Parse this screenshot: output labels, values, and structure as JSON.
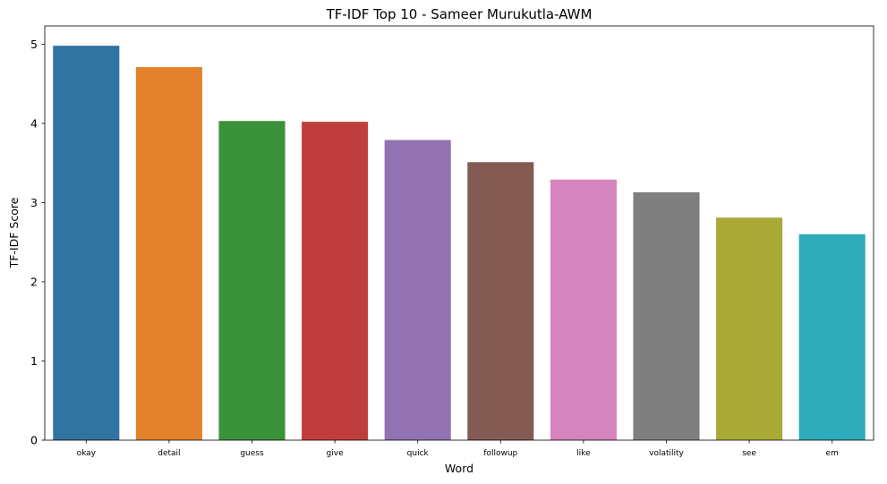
{
  "chart_data": {
    "type": "bar",
    "title": "TF-IDF Top 10 - Sameer Murukutla-AWM",
    "xlabel": "Word",
    "ylabel": "TF-IDF Score",
    "categories": [
      "okay",
      "detail",
      "guess",
      "give",
      "quick",
      "followup",
      "like",
      "volatility",
      "see",
      "em"
    ],
    "values": [
      4.98,
      4.71,
      4.03,
      4.02,
      3.79,
      3.51,
      3.29,
      3.13,
      2.81,
      2.6
    ],
    "colors": [
      "#3274a1",
      "#e1812c",
      "#3a923a",
      "#c03d3e",
      "#9372b2",
      "#845b53",
      "#d684bd",
      "#7f7f7f",
      "#a9aa35",
      "#2eabb8"
    ],
    "yticks": [
      "0",
      "1",
      "2",
      "3",
      "4",
      "5"
    ],
    "ylim": [
      0,
      5.23
    ],
    "grid": false,
    "legend": "none"
  }
}
